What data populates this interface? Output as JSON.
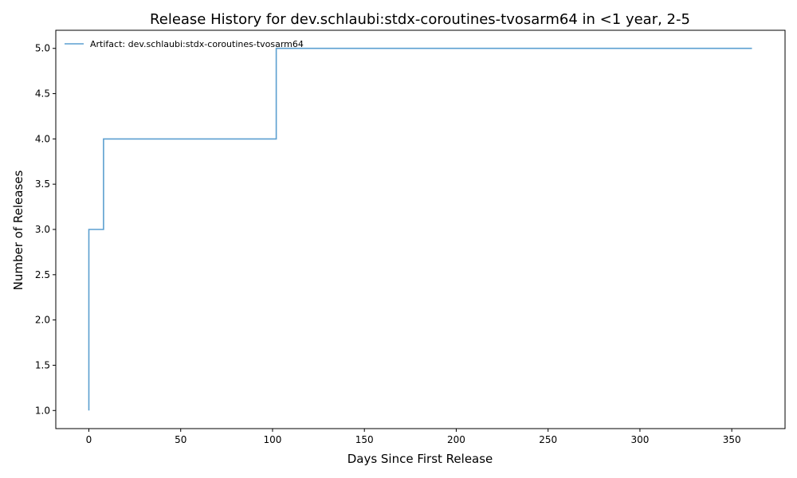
{
  "chart_data": {
    "type": "line",
    "title": "Release History for dev.schlaubi:stdx-coroutines-tvosarm64 in <1 year, 2-5",
    "xlabel": "Days Since First Release",
    "ylabel": "Number of Releases",
    "xlim": [
      -18,
      379
    ],
    "ylim": [
      0.8,
      5.2
    ],
    "x_ticks": [
      0,
      50,
      100,
      150,
      200,
      250,
      300,
      350
    ],
    "y_ticks": [
      1.0,
      1.5,
      2.0,
      2.5,
      3.0,
      3.5,
      4.0,
      4.5,
      5.0
    ],
    "x_tick_labels": [
      "0",
      "50",
      "100",
      "150",
      "200",
      "250",
      "300",
      "350"
    ],
    "y_tick_labels": [
      "1.0",
      "1.5",
      "2.0",
      "2.5",
      "3.0",
      "3.5",
      "4.0",
      "4.5",
      "5.0"
    ],
    "grid": false,
    "legend_position": "top-left",
    "step": "post",
    "series": [
      {
        "name": "Artifact: dev.schlaubi:stdx-coroutines-tvosarm64",
        "color": "#5b9fd0",
        "x": [
          0,
          0,
          8,
          102,
          361
        ],
        "y": [
          1,
          3,
          4,
          5,
          5
        ]
      }
    ]
  }
}
